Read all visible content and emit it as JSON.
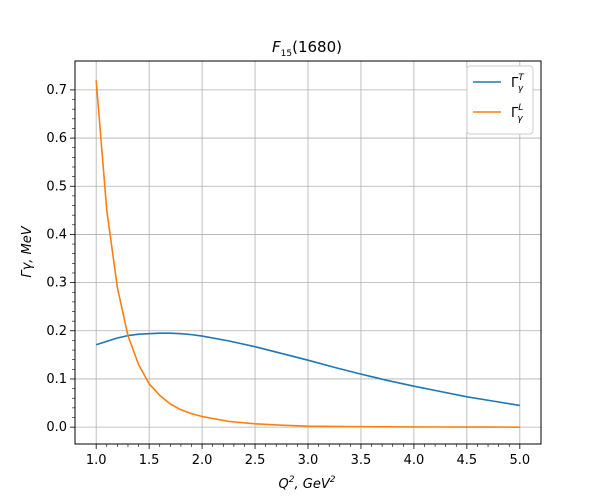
{
  "chart_data": {
    "type": "line",
    "title": {
      "main": "F",
      "sub": "15",
      "rest": "(1680)"
    },
    "xlabel": {
      "base": "Q",
      "sup1": "2",
      "mid": ", GeV",
      "sup2": "2"
    },
    "ylabel": "Γγ, MeV",
    "xlim": [
      0.8,
      5.2
    ],
    "ylim": [
      -0.035,
      0.76
    ],
    "xticks": [
      1.0,
      1.5,
      2.0,
      2.5,
      3.0,
      3.5,
      4.0,
      4.5,
      5.0
    ],
    "yticks": [
      0.0,
      0.1,
      0.2,
      0.3,
      0.4,
      0.5,
      0.6,
      0.7
    ],
    "xtick_labels": [
      "1.0",
      "1.5",
      "2.0",
      "2.5",
      "3.0",
      "3.5",
      "4.0",
      "4.5",
      "5.0"
    ],
    "ytick_labels": [
      "0.0",
      "0.1",
      "0.2",
      "0.3",
      "0.4",
      "0.5",
      "0.6",
      "0.7"
    ],
    "grid": true,
    "legend_position": "top-right",
    "x": [
      1.0,
      1.1,
      1.2,
      1.3,
      1.4,
      1.5,
      1.6,
      1.7,
      1.8,
      1.9,
      2.0,
      2.25,
      2.5,
      2.75,
      3.0,
      3.25,
      3.5,
      3.75,
      4.0,
      4.25,
      4.5,
      4.75,
      5.0
    ],
    "series": [
      {
        "name": "Γγ^T",
        "label_base": "Γ",
        "label_sub": "γ",
        "label_sup": "T",
        "color": "#1f77b4",
        "values": [
          0.171,
          0.178,
          0.185,
          0.19,
          0.193,
          0.194,
          0.195,
          0.195,
          0.194,
          0.192,
          0.189,
          0.179,
          0.167,
          0.153,
          0.139,
          0.124,
          0.11,
          0.097,
          0.085,
          0.074,
          0.063,
          0.054,
          0.045
        ]
      },
      {
        "name": "Γγ^L",
        "label_base": "Γ",
        "label_sub": "γ",
        "label_sup": "L",
        "color": "#ff7f0e",
        "values": [
          0.72,
          0.45,
          0.29,
          0.19,
          0.13,
          0.09,
          0.066,
          0.048,
          0.036,
          0.028,
          0.022,
          0.012,
          0.007,
          0.004,
          0.002,
          0.0015,
          0.001,
          0.0007,
          0.0005,
          0.0003,
          0.0002,
          0.0001,
          0.0
        ]
      }
    ]
  }
}
